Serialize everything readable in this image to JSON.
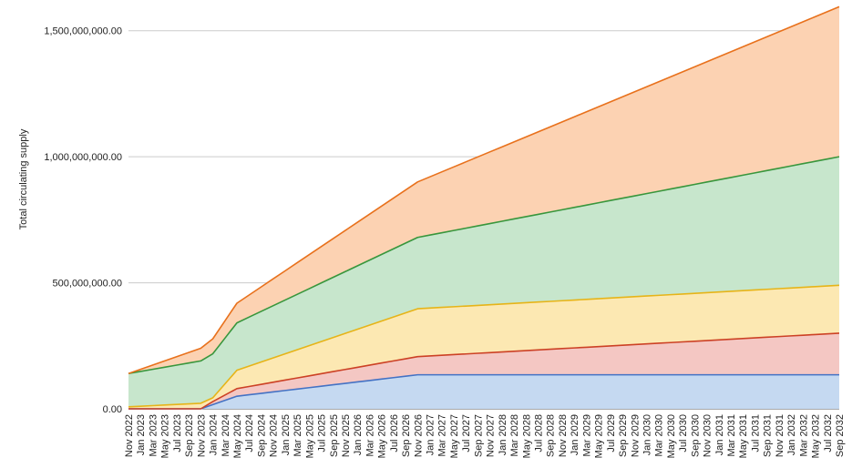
{
  "chart_data": {
    "type": "area",
    "stacked": true,
    "title": "",
    "ylabel": "Total circulating supply",
    "xlabel": "",
    "ylim": [
      0,
      1600000000
    ],
    "y_ticks": [
      0,
      500000000,
      1000000000,
      1500000000
    ],
    "y_tick_labels": [
      "0.00",
      "500,000,000.00",
      "1,000,000,000.00",
      "1,500,000,000.00"
    ],
    "grid": "horizontal",
    "legend": "none",
    "x": [
      "Nov 2022",
      "Jan 2023",
      "Mar 2023",
      "May 2023",
      "Jul 2023",
      "Sep 2023",
      "Nov 2023",
      "Jan 2024",
      "Mar 2024",
      "May 2024",
      "Jul 2024",
      "Sep 2024",
      "Nov 2024",
      "Jan 2025",
      "Mar 2025",
      "May 2025",
      "Jul 2025",
      "Sep 2025",
      "Nov 2025",
      "Jan 2026",
      "Mar 2026",
      "May 2026",
      "Jul 2026",
      "Sep 2026",
      "Nov 2026",
      "Jan 2027",
      "Mar 2027",
      "May 2027",
      "Jul 2027",
      "Sep 2027",
      "Nov 2027",
      "Jan 2028",
      "Mar 2028",
      "May 2028",
      "Jul 2028",
      "Sep 2028",
      "Nov 2028",
      "Jan 2029",
      "Mar 2029",
      "May 2029",
      "Jul 2029",
      "Sep 2029",
      "Nov 2029",
      "Jan 2030",
      "Mar 2030",
      "May 2030",
      "Jul 2030",
      "Sep 2030",
      "Nov 2030",
      "Jan 2031",
      "Mar 2031",
      "May 2031",
      "Jul 2031",
      "Sep 2031",
      "Nov 2031",
      "Jan 2032",
      "Mar 2032",
      "May 2032",
      "Jul 2032",
      "Sep 2032"
    ],
    "series": [
      {
        "color": "#4472c4",
        "fill": "#c5d9f1",
        "points": [
          [
            "Nov 2022",
            0
          ],
          [
            "Nov 2023",
            0
          ],
          [
            "May 2024",
            50000000
          ],
          [
            "Nov 2026",
            135000000
          ],
          [
            "Sep 2032",
            135000000
          ]
        ]
      },
      {
        "color": "#cc4125",
        "fill": "#f4c7c3",
        "points": [
          [
            "Nov 2022",
            0
          ],
          [
            "Nov 2023",
            0
          ],
          [
            "Jan 2024",
            12000000
          ],
          [
            "May 2024",
            30000000
          ],
          [
            "Nov 2026",
            72000000
          ],
          [
            "Sep 2032",
            165000000
          ]
        ]
      },
      {
        "color": "#e6b418",
        "fill": "#fce8b2",
        "points": [
          [
            "Nov 2022",
            8000000
          ],
          [
            "Nov 2023",
            22000000
          ],
          [
            "Jan 2024",
            15000000
          ],
          [
            "May 2024",
            73000000
          ],
          [
            "Nov 2026",
            190000000
          ],
          [
            "Sep 2032",
            190000000
          ]
        ]
      },
      {
        "color": "#38963c",
        "fill": "#c7e6cc",
        "points": [
          [
            "Nov 2022",
            132000000
          ],
          [
            "Nov 2023",
            168000000
          ],
          [
            "May 2024",
            188000000
          ],
          [
            "Nov 2026",
            283000000
          ],
          [
            "Sep 2032",
            510000000
          ]
        ]
      },
      {
        "color": "#e8711c",
        "fill": "#fcd2b2",
        "points": [
          [
            "Nov 2022",
            0
          ],
          [
            "Nov 2023",
            50000000
          ],
          [
            "May 2024",
            78000000
          ],
          [
            "Nov 2026",
            220000000
          ],
          [
            "Sep 2032",
            595000000
          ]
        ]
      }
    ]
  }
}
